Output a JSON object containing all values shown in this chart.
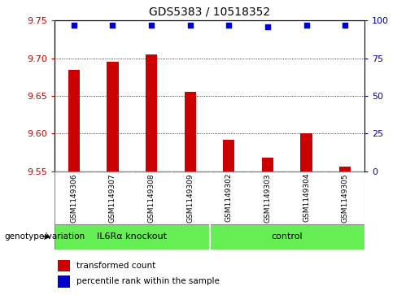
{
  "title": "GDS5383 / 10518352",
  "samples": [
    "GSM1149306",
    "GSM1149307",
    "GSM1149308",
    "GSM1149309",
    "GSM1149302",
    "GSM1149303",
    "GSM1149304",
    "GSM1149305"
  ],
  "bar_values": [
    9.685,
    9.695,
    9.705,
    9.655,
    9.592,
    9.568,
    9.6,
    9.556
  ],
  "percentile_values": [
    97,
    97,
    97,
    97,
    97,
    96,
    97,
    97
  ],
  "bar_bottom": 9.55,
  "ylim_left": [
    9.55,
    9.75
  ],
  "ylim_right": [
    0,
    100
  ],
  "yticks_left": [
    9.55,
    9.6,
    9.65,
    9.7,
    9.75
  ],
  "yticks_right": [
    0,
    25,
    50,
    75,
    100
  ],
  "bar_color": "#cc0000",
  "dot_color": "#0000cc",
  "group1_label": "IL6Rα knockout",
  "group2_label": "control",
  "group_color": "#66ee55",
  "group_label_text": "genotype/variation",
  "legend_bar_label": "transformed count",
  "legend_dot_label": "percentile rank within the sample",
  "background_color": "#ffffff",
  "plot_bg_color": "#ffffff",
  "tick_label_color_left": "#cc0000",
  "tick_label_color_right": "#0000cc",
  "grid_color": "#000000",
  "box_color": "#cccccc",
  "bar_width": 0.3
}
